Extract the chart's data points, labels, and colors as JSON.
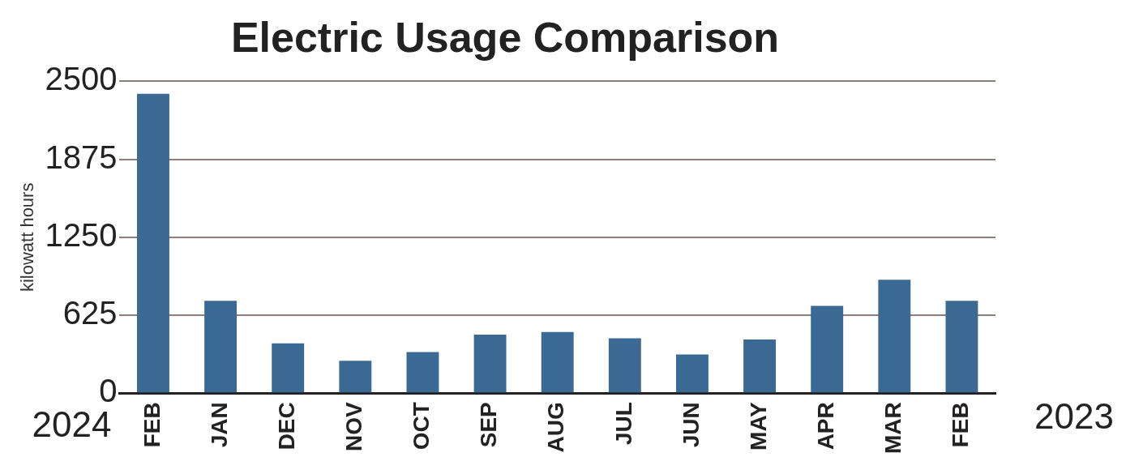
{
  "chart_data": {
    "type": "bar",
    "title": "Electric Usage Comparison",
    "ylabel": "kilowatt hours",
    "categories": [
      "FEB",
      "JAN",
      "DEC",
      "NOV",
      "OCT",
      "SEP",
      "AUG",
      "JUL",
      "JUN",
      "MAY",
      "APR",
      "MAR",
      "FEB"
    ],
    "values": [
      2400,
      740,
      400,
      260,
      330,
      470,
      490,
      440,
      310,
      430,
      700,
      910,
      740
    ],
    "color": "#3a6a94",
    "ylim": [
      0,
      2500
    ],
    "yticks": [
      0,
      625,
      1250,
      1875,
      2500
    ],
    "grid": "y",
    "legend": false,
    "annotations": [
      "2024",
      "2023"
    ]
  }
}
